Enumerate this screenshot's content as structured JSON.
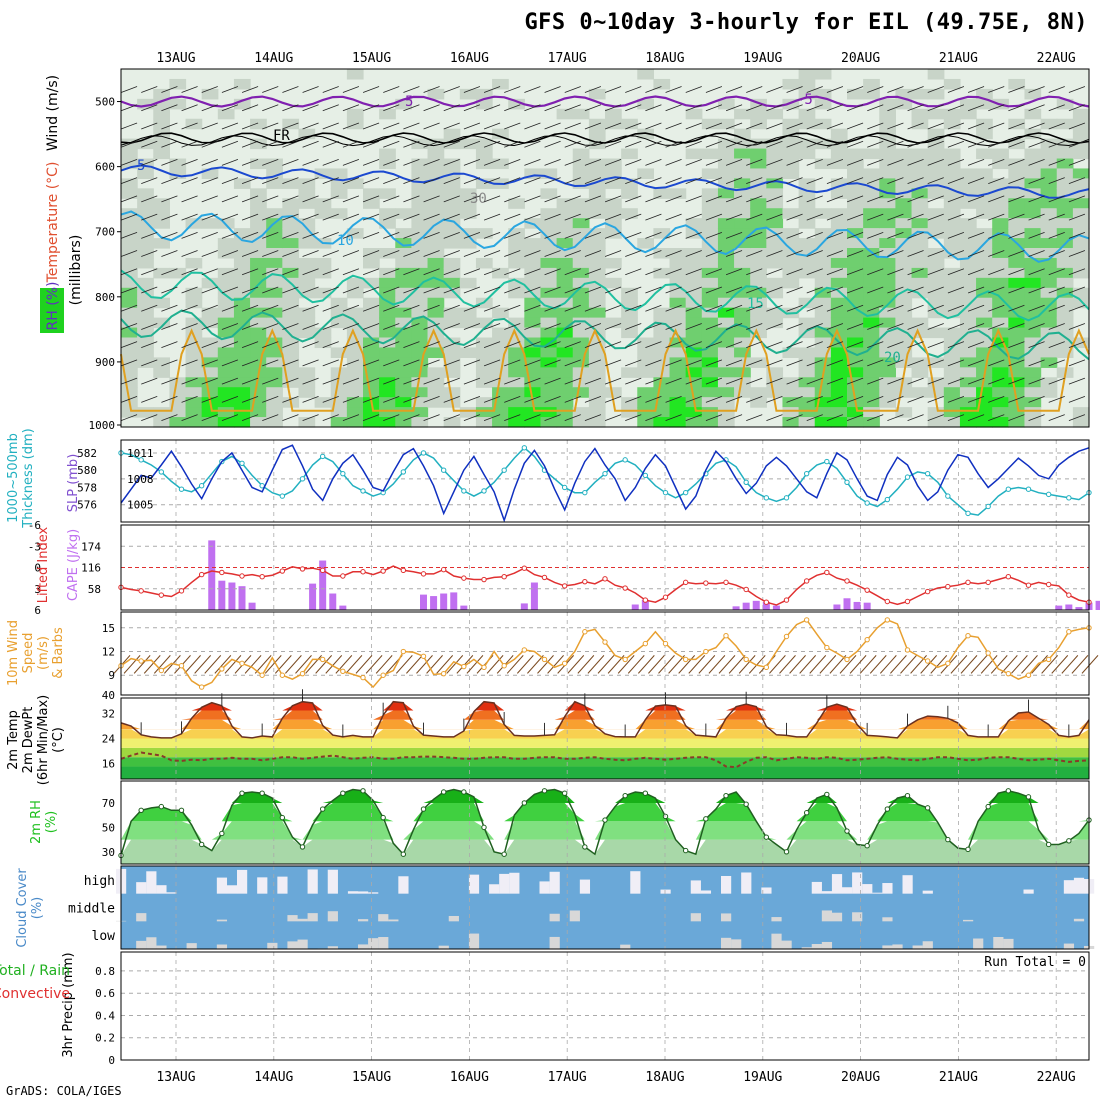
{
  "title": "GFS 0~10day 3-hourly for EIL (49.75E, 8N)",
  "credit": "GrADS: COLA/IGES",
  "days": [
    "13AUG",
    "14AUG",
    "15AUG",
    "16AUG",
    "17AUG",
    "18AUG",
    "19AUG",
    "20AUG",
    "21AUG",
    "22AUG"
  ],
  "colors": {
    "rh_light": "#e6efe6",
    "rh_mid": "#c8d4c8",
    "rh_green": "#6fcf6f",
    "rh_bright": "#22e622",
    "thickness": "#22b0c0",
    "slp": "#1030c0",
    "lifted": "#e03030",
    "cape": "#c070f0",
    "wind": "#e8a030",
    "barb": "#7a4a20",
    "temp_fill": "#e05010",
    "dew": "#8a3a2a",
    "rh2m": "#20c020",
    "cloud": "#6aa8d8",
    "cloud_clear": "#f0eef6"
  },
  "chart_data": [
    {
      "panel": "profile",
      "type": "heatmap",
      "ylabel_parts": [
        "Wind (m/s)",
        "Temperature (°C)",
        "RH (%)",
        "(millibars)"
      ],
      "yticks": [
        500,
        600,
        700,
        800,
        900,
        1000
      ],
      "contour_labels": [
        "5",
        "FR",
        "5",
        "10",
        "15",
        "20",
        "30",
        "-5"
      ],
      "ylim": [
        1000,
        450
      ]
    },
    {
      "panel": "thickness_slp",
      "type": "line",
      "ylabel": [
        "1000~500mb",
        "Thickness (dm)"
      ],
      "ylabel_right": "SLP (mb)",
      "yticks_left": [
        576,
        578,
        580,
        582
      ],
      "yticks_right": [
        1005,
        1008,
        1011
      ],
      "series": [
        {
          "name": "Thickness",
          "values": [
            582.0,
            581.8,
            581.2,
            580.6,
            579.8,
            578.7,
            577.8,
            577.5,
            578.2,
            579.6,
            581.0,
            581.6,
            580.8,
            579.4,
            578.2,
            577.4,
            577.0,
            577.6,
            579.0,
            580.6,
            581.6,
            581.0,
            579.6,
            578.2,
            577.6,
            577.0,
            577.4,
            578.4,
            579.8,
            581.2,
            582.0,
            581.4,
            580.0,
            578.8,
            577.6,
            577.0,
            577.6,
            578.6,
            580.0,
            581.4,
            582.6,
            581.6,
            580.0,
            579.0,
            578.0,
            577.4,
            577.4,
            578.6,
            579.6,
            580.8,
            581.2,
            580.6,
            579.4,
            578.2,
            577.4,
            576.8,
            577.4,
            578.4,
            579.6,
            580.8,
            581.2,
            580.4,
            578.6,
            577.4,
            576.8,
            576.4,
            576.8,
            578.0,
            579.6,
            580.6,
            581.0,
            580.2,
            578.6,
            577.0,
            576.2,
            575.8,
            576.6,
            577.8,
            579.2,
            579.8,
            579.6,
            578.6,
            577.0,
            576.0,
            575.0,
            574.8,
            575.8,
            577.0,
            577.8,
            578.0,
            577.8,
            577.4,
            577.2,
            577.0,
            576.8,
            576.6,
            577.4
          ]
        },
        {
          "name": "SLP",
          "values": [
            1005.2,
            1006.8,
            1008.4,
            1008.1,
            1009.6,
            1011.2,
            1009.4,
            1007.4,
            1005.7,
            1008.0,
            1010.0,
            1011.0,
            1009.0,
            1007.0,
            1006.5,
            1009.0,
            1011.4,
            1011.9,
            1009.5,
            1006.8,
            1005.5,
            1008.0,
            1009.8,
            1010.8,
            1009.0,
            1007.0,
            1006.6,
            1008.8,
            1010.8,
            1011.5,
            1009.5,
            1007.2,
            1004.0,
            1006.5,
            1009.0,
            1010.6,
            1008.5,
            1006.5,
            1003.2,
            1006.8,
            1009.8,
            1011.3,
            1009.5,
            1006.8,
            1004.4,
            1007.5,
            1010.0,
            1011.5,
            1009.6,
            1008.0,
            1005.5,
            1007.0,
            1009.2,
            1010.8,
            1009.5,
            1007.0,
            1004.5,
            1006.0,
            1009.0,
            1011.2,
            1010.0,
            1008.0,
            1006.3,
            1007.5,
            1009.5,
            1010.5,
            1009.5,
            1008.0,
            1006.5,
            1005.8,
            1008.6,
            1011.0,
            1010.2,
            1008.0,
            1006.0,
            1005.5,
            1008.5,
            1010.5,
            1009.6,
            1007.2,
            1005.5,
            1006.5,
            1009.0,
            1010.8,
            1010.5,
            1008.6,
            1007.0,
            1008.0,
            1009.2,
            1010.4,
            1009.5,
            1008.4,
            1008.0,
            1009.6,
            1010.5,
            1011.2,
            1011.6
          ]
        }
      ]
    },
    {
      "panel": "lifted_cape",
      "type": "bar",
      "ylabel_left": "Lifted Index",
      "ylabel_right": "CAPE (J/kg)",
      "yticks_left": [
        -6,
        -3,
        0,
        3,
        6
      ],
      "yticks_right": [
        58,
        116,
        174
      ],
      "series": [
        {
          "name": "Lifted Index",
          "values": [
            2.8,
            3.1,
            3.3,
            3.6,
            3.9,
            4.1,
            3.3,
            2.1,
            1.0,
            0.5,
            0.7,
            0.9,
            1.2,
            1.0,
            1.3,
            1.1,
            0.5,
            -0.1,
            0.2,
            0.1,
            0.4,
            1.2,
            1.2,
            0.6,
            0.6,
            1.0,
            0.5,
            -0.2,
            0.4,
            0.6,
            0.9,
            0.9,
            0.3,
            1.2,
            1.5,
            1.7,
            1.7,
            1.4,
            1.3,
            0.8,
            0.1,
            1.0,
            1.4,
            2.1,
            2.6,
            2.4,
            2.0,
            2.3,
            1.6,
            2.5,
            2.9,
            3.6,
            4.6,
            4.9,
            4.2,
            3.1,
            2.1,
            2.3,
            2.2,
            2.3,
            2.1,
            2.5,
            3.1,
            4.1,
            4.9,
            5.3,
            4.6,
            3.1,
            1.9,
            1.1,
            0.7,
            1.5,
            1.9,
            2.5,
            3.2,
            4.0,
            4.8,
            5.2,
            4.8,
            4.1,
            3.4,
            2.9,
            2.7,
            2.5,
            2.1,
            2.3,
            2.1,
            1.7,
            1.3,
            1.8,
            2.5,
            2.1,
            2.4,
            2.6,
            3.9,
            4.6,
            4.9
          ]
        },
        {
          "name": "CAPE",
          "values": [
            0,
            0,
            0,
            0,
            0,
            0,
            0,
            0,
            0,
            190,
            80,
            75,
            65,
            20,
            0,
            0,
            0,
            0,
            0,
            72,
            135,
            45,
            12,
            0,
            0,
            0,
            0,
            0,
            0,
            0,
            42,
            38,
            45,
            48,
            12,
            0,
            0,
            0,
            0,
            0,
            18,
            75,
            0,
            0,
            0,
            0,
            0,
            0,
            0,
            0,
            0,
            15,
            28,
            0,
            0,
            0,
            0,
            0,
            0,
            0,
            0,
            10,
            20,
            25,
            22,
            12,
            0,
            0,
            0,
            0,
            0,
            15,
            32,
            22,
            20,
            0,
            0,
            0,
            0,
            0,
            0,
            0,
            0,
            0,
            0,
            0,
            0,
            0,
            0,
            0,
            0,
            0,
            0,
            12,
            15,
            8,
            20,
            25
          ]
        }
      ]
    },
    {
      "panel": "wind10m",
      "type": "line",
      "ylabel": [
        "10m Wind",
        "Speed",
        "(m/s)",
        "& Barbs"
      ],
      "yticks": [
        9,
        12,
        15
      ],
      "series": [
        {
          "name": "10m Wind",
          "values": [
            10.2,
            11.1,
            10.8,
            10.9,
            9.6,
            10.5,
            10.2,
            8.3,
            7.5,
            8.1,
            9.8,
            11.0,
            10.5,
            10.0,
            9.0,
            11.2,
            9.0,
            8.5,
            9.2,
            11.0,
            11.0,
            10.2,
            9.5,
            9.1,
            8.7,
            7.5,
            9.0,
            9.6,
            12.0,
            11.9,
            11.4,
            9.1,
            9.2,
            10.7,
            10.1,
            11.0,
            10.0,
            12.0,
            10.2,
            11.0,
            12.2,
            12.0,
            11.0,
            10.0,
            10.5,
            12.0,
            14.5,
            14.8,
            13.2,
            11.5,
            11.0,
            12.0,
            13.0,
            14.5,
            13.0,
            11.8,
            11.0,
            11.0,
            12.0,
            12.5,
            14.0,
            12.7,
            11.0,
            10.3,
            10.0,
            12.0,
            13.9,
            15.4,
            16.0,
            14.2,
            12.5,
            11.8,
            11.0,
            12.0,
            13.5,
            15.0,
            16.0,
            15.5,
            12.2,
            11.5,
            10.8,
            10.0,
            10.5,
            12.5,
            14.0,
            13.8,
            11.8,
            9.8,
            9.2,
            8.5,
            9.0,
            10.5,
            11.0,
            12.5,
            14.5,
            14.8,
            15.0
          ]
        }
      ]
    },
    {
      "panel": "temp2m",
      "type": "area",
      "ylabel": [
        "2m Temp",
        "2m DewPt",
        "(6hr Min/Max)",
        "(°C)"
      ],
      "yticks": [
        16,
        24,
        32
      ],
      "series": [
        {
          "name": "2m Temp",
          "values": [
            29.0,
            28.0,
            25.2,
            24.5,
            24.2,
            24.2,
            25.5,
            30.5,
            34.0,
            35.5,
            34.5,
            28.0,
            24.5,
            24.2,
            24.8,
            24.5,
            30.5,
            34.5,
            35.8,
            35.4,
            28.2,
            25.1,
            24.5,
            25.0,
            24.5,
            24.5,
            31.5,
            35.8,
            35.5,
            28.0,
            25.1,
            24.8,
            24.5,
            24.5,
            26.4,
            32.6,
            35.8,
            35.4,
            28.5,
            25.0,
            24.8,
            24.8,
            25.0,
            25.2,
            31.0,
            35.8,
            34.5,
            28.2,
            25.5,
            24.6,
            24.5,
            24.5,
            30.0,
            34.4,
            34.8,
            34.4,
            28.1,
            25.1,
            24.8,
            24.5,
            30.5,
            34.2,
            35.0,
            34.2,
            27.9,
            25.2,
            25.0,
            24.5,
            24.5,
            29.0,
            34.0,
            35.0,
            34.0,
            28.5,
            25.0,
            24.8,
            24.5,
            24.2,
            28.0,
            30.0,
            31.2,
            31.0,
            30.5,
            29.0,
            25.0,
            24.5,
            24.5,
            24.5,
            29.6,
            32.2,
            32.5,
            30.5,
            28.5,
            25.0,
            24.5,
            25.0,
            30.0
          ]
        },
        {
          "name": "2m DewPt",
          "values": [
            17.5,
            18.5,
            19.5,
            19.0,
            18.5,
            17.0,
            16.8,
            17.2,
            17.0,
            17.5,
            17.5,
            17.8,
            17.5,
            17.5,
            17.0,
            17.5,
            18.0,
            18.0,
            17.5,
            17.8,
            18.2,
            18.5,
            18.0,
            17.5,
            17.8,
            18.0,
            17.5,
            17.5,
            18.0,
            18.0,
            18.2,
            18.2,
            18.0,
            17.8,
            17.5,
            17.5,
            17.8,
            18.0,
            18.0,
            17.5,
            17.5,
            17.8,
            18.0,
            18.0,
            17.5,
            17.5,
            17.8,
            18.0,
            17.5,
            17.2,
            17.0,
            17.5,
            17.8,
            17.5,
            17.2,
            17.5,
            17.8,
            18.0,
            18.0,
            17.0,
            15.0,
            14.8,
            16.5,
            17.8,
            18.0,
            17.0,
            17.5,
            18.0,
            17.8,
            17.5,
            18.0,
            17.8,
            17.0,
            17.2,
            17.5,
            17.8,
            18.0,
            17.5,
            17.2,
            17.0,
            17.5,
            18.0,
            18.0,
            17.5,
            17.0,
            17.2,
            17.8,
            18.0,
            18.0,
            17.5,
            17.0,
            17.2,
            17.5,
            17.0,
            16.5,
            16.8,
            17.0
          ]
        }
      ]
    },
    {
      "panel": "rh2m",
      "type": "area",
      "ylabel": [
        "2m RH",
        "(%)"
      ],
      "yticks": [
        30,
        50,
        70
      ],
      "series": [
        {
          "name": "2m RH",
          "values": [
            27,
            55,
            64,
            66,
            67,
            64,
            64,
            52,
            36,
            31,
            45,
            68,
            78,
            79,
            78,
            74,
            58,
            42,
            34,
            52,
            65,
            72,
            78,
            81,
            80,
            72,
            58,
            37,
            28,
            48,
            65,
            73,
            79,
            81,
            79,
            75,
            50,
            30,
            28,
            60,
            70,
            77,
            80,
            81,
            78,
            61,
            34,
            28,
            56,
            67,
            76,
            79,
            78,
            74,
            59,
            40,
            31,
            28,
            57,
            65,
            76,
            79,
            69,
            55,
            42,
            36,
            30,
            48,
            62,
            74,
            77,
            66,
            47,
            36,
            35,
            52,
            65,
            74,
            76,
            69,
            66,
            54,
            40,
            33,
            32,
            55,
            67,
            78,
            80,
            78,
            75,
            48,
            36,
            36,
            39,
            45,
            56
          ]
        }
      ]
    },
    {
      "panel": "cloud",
      "type": "bar",
      "ylabel": [
        "Cloud Cover",
        "(%)"
      ],
      "levels": [
        "high",
        "middle",
        "low"
      ]
    },
    {
      "panel": "precip",
      "type": "bar",
      "ylabel_left": "3hr Precip (mm)",
      "ylabel_side": [
        "Total / Rain",
        "Convective"
      ],
      "yticks": [
        0,
        0.2,
        0.4,
        0.6,
        0.8
      ],
      "run_total": "Run Total = 0",
      "values": []
    }
  ]
}
